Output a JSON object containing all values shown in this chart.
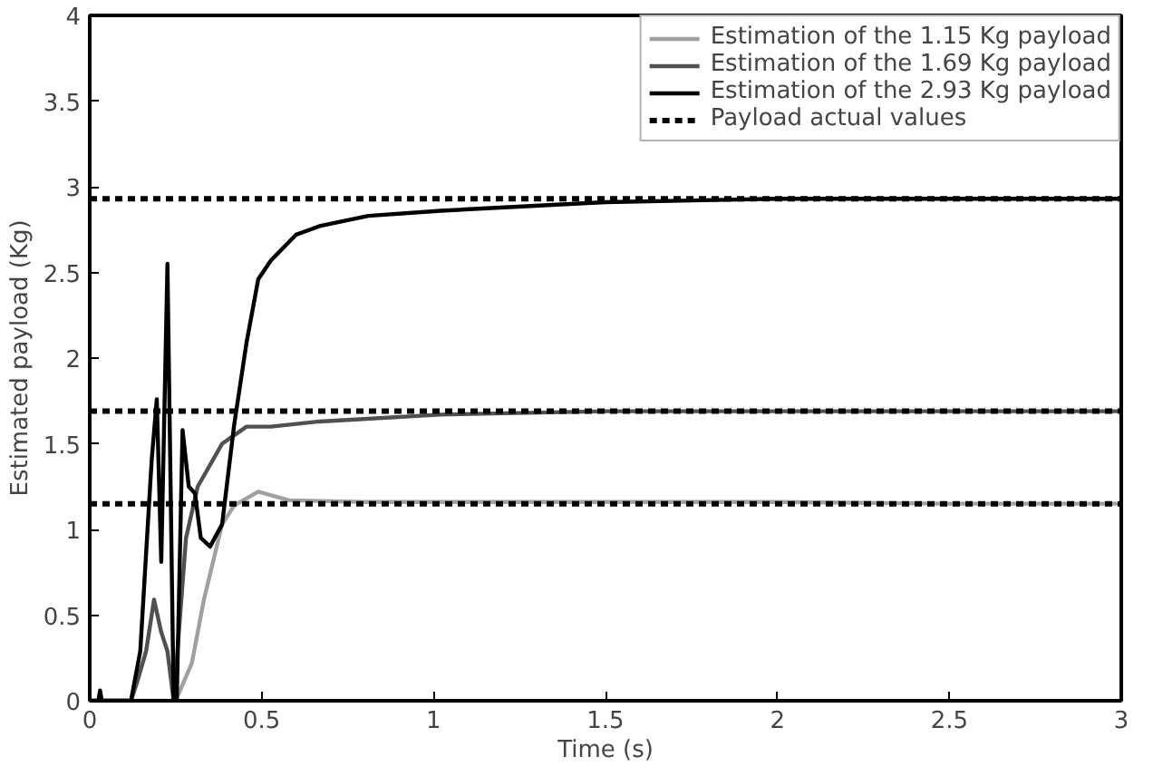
{
  "chart_data": {
    "type": "line",
    "xlabel": "Time (s)",
    "ylabel": "Estimated payload (Kg)",
    "xlim": [
      0,
      3
    ],
    "ylim": [
      0,
      4
    ],
    "xticks": [
      0,
      0.5,
      1,
      1.5,
      2,
      2.5,
      3
    ],
    "yticks": [
      0,
      0.5,
      1,
      1.5,
      2,
      2.5,
      3,
      3.5,
      4
    ],
    "grid": false,
    "legend": "top right",
    "marker": "none",
    "line_style": "solid",
    "series": [
      {
        "name": "Estimation of the 1.15 Kg payload",
        "color": "#a0a0a0",
        "x": [
          0,
          0.1,
          0.25,
          0.297,
          0.332,
          0.385,
          0.42,
          0.49,
          0.58,
          0.8,
          1.02,
          1.5,
          2,
          2.5,
          3
        ],
        "values": [
          0,
          0,
          0,
          0.22,
          0.59,
          1.03,
          1.14,
          1.22,
          1.17,
          1.16,
          1.16,
          1.16,
          1.16,
          1.15,
          1.15
        ]
      },
      {
        "name": "Estimation of the 1.69 Kg payload",
        "color": "#505050",
        "x": [
          0,
          0.12,
          0.138,
          0.164,
          0.187,
          0.208,
          0.226,
          0.244,
          0.28,
          0.314,
          0.385,
          0.456,
          0.527,
          0.668,
          1.02,
          1.5,
          2,
          2.5,
          3
        ],
        "values": [
          0,
          0,
          0.11,
          0.29,
          0.59,
          0.4,
          0.29,
          0,
          0.95,
          1.25,
          1.5,
          1.6,
          1.6,
          1.63,
          1.67,
          1.69,
          1.69,
          1.69,
          1.69
        ]
      },
      {
        "name": "Estimation of the 2.93 Kg payload",
        "color": "#000000",
        "x": [
          0,
          0.025,
          0.03,
          0.035,
          0.12,
          0.147,
          0.18,
          0.195,
          0.208,
          0.226,
          0.244,
          0.253,
          0.27,
          0.288,
          0.306,
          0.323,
          0.35,
          0.385,
          0.42,
          0.456,
          0.49,
          0.527,
          0.6,
          0.668,
          0.81,
          1.02,
          1.5,
          2,
          2.5,
          3
        ],
        "values": [
          0,
          0,
          0.06,
          0,
          0,
          0.29,
          1.4,
          1.76,
          0.81,
          2.55,
          0,
          0,
          1.58,
          1.25,
          1.21,
          0.95,
          0.9,
          1.03,
          1.61,
          2.09,
          2.46,
          2.57,
          2.72,
          2.77,
          2.83,
          2.86,
          2.91,
          2.93,
          2.93,
          2.93
        ]
      },
      {
        "name": "Payload actual values",
        "color": "#000000",
        "line_style": "dashed",
        "x": [
          0,
          3
        ],
        "values": [
          2.93,
          2.93
        ]
      },
      {
        "color": "#000000",
        "line_style": "dashed",
        "x": [
          0,
          3
        ],
        "values": [
          1.69,
          1.69
        ]
      },
      {
        "color": "#000000",
        "line_style": "dashed",
        "x": [
          0,
          3
        ],
        "values": [
          1.15,
          1.15
        ]
      }
    ]
  }
}
